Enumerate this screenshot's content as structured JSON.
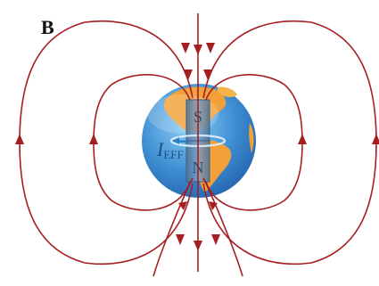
{
  "panel_label": "B",
  "labels": {
    "south_pole": "S",
    "north_pole": "N",
    "current_symbol": "I",
    "current_subscript": "EFF"
  },
  "colors": {
    "field_lines": "#a51e22",
    "ocean": "#3f8fd3",
    "land": "#f2a13a",
    "magnet": "#5f83a8",
    "current_arrow": "#2a7fc0",
    "text_blue": "#1f4f8a"
  }
}
